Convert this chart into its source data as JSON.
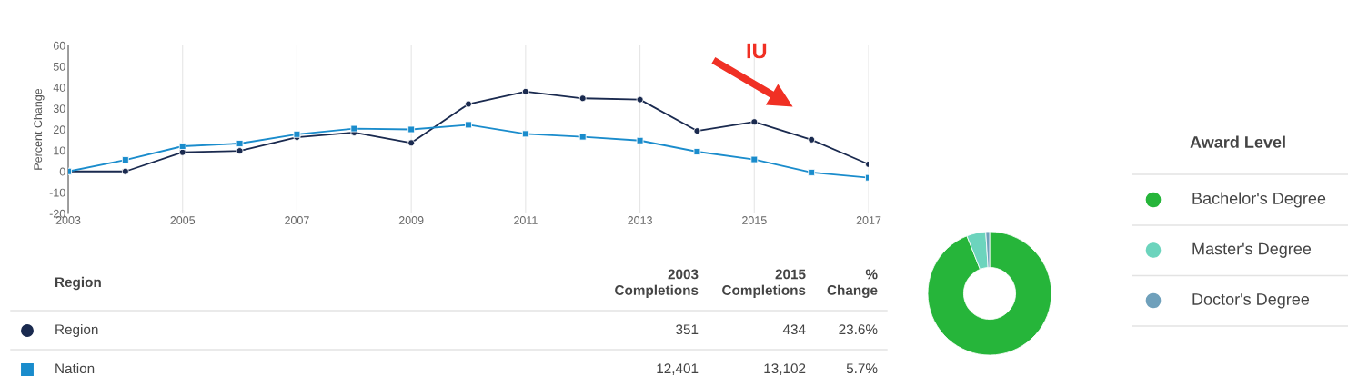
{
  "chart_data": [
    {
      "type": "line",
      "ylabel": "Percent Change",
      "x": [
        2003,
        2004,
        2005,
        2006,
        2007,
        2008,
        2009,
        2010,
        2011,
        2012,
        2013,
        2014,
        2015,
        2016,
        2017
      ],
      "xlim": [
        2003,
        2017
      ],
      "xticks": [
        2003,
        2005,
        2007,
        2009,
        2011,
        2013,
        2015,
        2017
      ],
      "ylim": [
        -20,
        60
      ],
      "yticks": [
        -20,
        -10,
        0,
        10,
        20,
        30,
        40,
        50,
        60
      ],
      "grid": "x",
      "legend": "bottom",
      "series": [
        {
          "name": "Region",
          "color": "#1a2a4f",
          "marker": "circle",
          "values": [
            0,
            0,
            9.1,
            9.8,
            16.3,
            18.5,
            13.6,
            32.1,
            38.0,
            34.8,
            34.2,
            19.3,
            23.6,
            15.1,
            3.4
          ]
        },
        {
          "name": "Nation",
          "color": "#1a8ccc",
          "marker": "square",
          "values": [
            0,
            5.5,
            12.0,
            13.3,
            17.7,
            20.4,
            20.0,
            22.2,
            17.9,
            16.5,
            14.7,
            9.4,
            5.7,
            -0.5,
            -3.0
          ]
        }
      ],
      "annotations": [
        "IU",
        "Region",
        "2003\nCompletions",
        "2015\nCompletions",
        "%\nChange",
        "351",
        "434",
        "23.6%",
        "12,401",
        "13,102",
        "5.7%"
      ]
    },
    {
      "type": "donut",
      "legend_title": "Award Level",
      "legend": "right",
      "categories": [
        "Bachelor's Degree",
        "Master's Degree",
        "Doctor's Degree"
      ],
      "values": [
        94,
        5,
        1
      ],
      "colors": [
        "#26b53a",
        "#6cd4bd",
        "#6fa0bb"
      ]
    }
  ]
}
